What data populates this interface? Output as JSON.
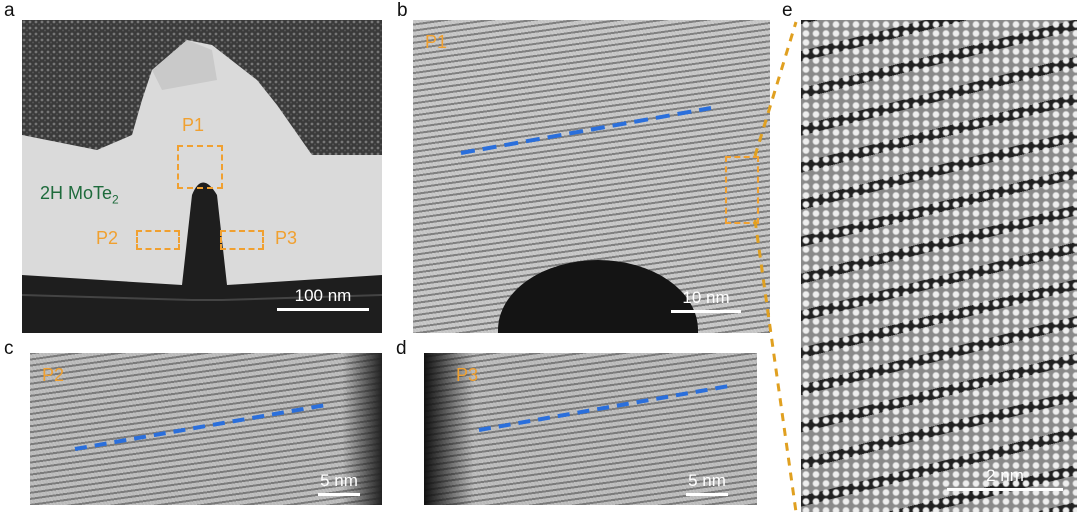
{
  "panels": {
    "a": {
      "letter": "a",
      "material_label": "2H MoTe",
      "material_sub": "2",
      "regions": [
        "P1",
        "P2",
        "P3"
      ],
      "scale_bar": "100 nm"
    },
    "b": {
      "letter": "b",
      "region": "P1",
      "scale_bar": "10 nm"
    },
    "c": {
      "letter": "c",
      "region": "P2",
      "scale_bar": "5 nm"
    },
    "d": {
      "letter": "d",
      "region": "P3",
      "scale_bar": "5 nm"
    },
    "e": {
      "letter": "e",
      "scale_bar": "2 nm"
    }
  },
  "colors": {
    "highlight": "#f0a030",
    "guide_line": "#2a6fdc",
    "material_label": "#1e6b3c"
  }
}
